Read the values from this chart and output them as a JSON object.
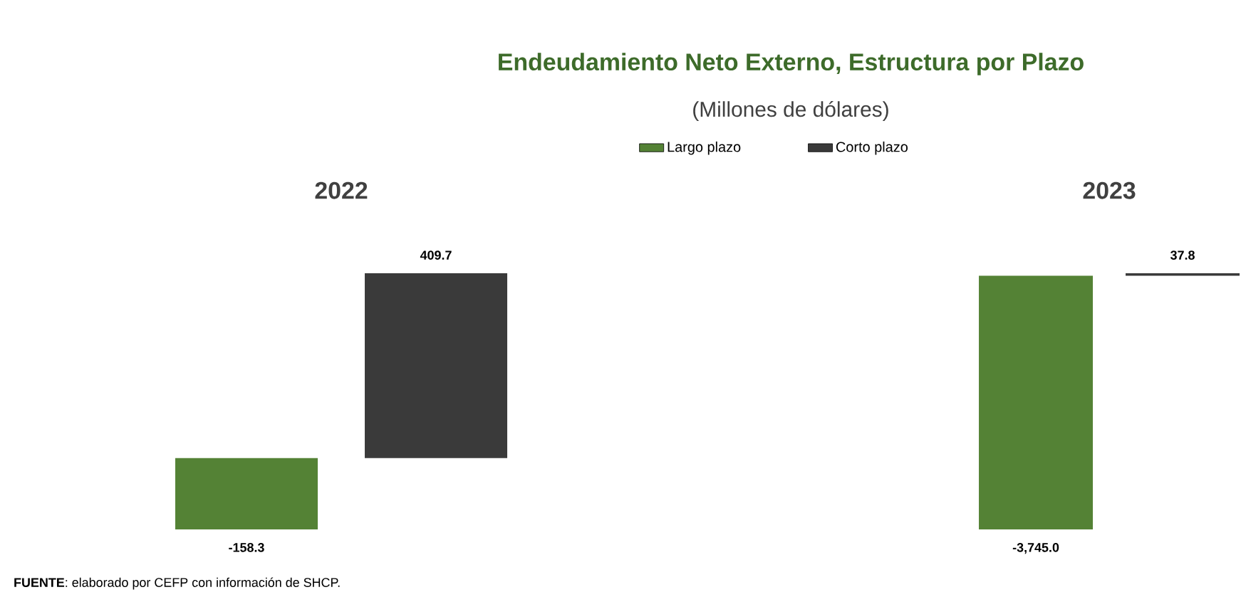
{
  "chart_data": [
    {
      "type": "other",
      "title": "Endeudamiento Neto Externo, Estructura por Plazo",
      "subtitle": "(Millones de dólares)",
      "annotations": [
        "**FUENTE**: elaborado por CEFP con información de SHCP."
      ]
    },
    {
      "type": "bar",
      "title": "2022",
      "categories": [
        null
      ],
      "legend": "top",
      "tick_labels": false,
      "series": [
        {
          "name": "Largo plazo",
          "color": "#548235",
          "values": [
            -158.3
          ],
          "value_labels": [
            "-158.3"
          ]
        },
        {
          "name": "Corto plazo",
          "color": "#3a3a3a",
          "values": [
            409.7
          ],
          "value_labels": [
            "409.7"
          ]
        }
      ]
    },
    {
      "type": "bar",
      "title": "2023",
      "categories": [
        null
      ],
      "tick_labels": false,
      "series": [
        {
          "color": "#548235",
          "values": [
            -3745.0
          ],
          "value_labels": [
            "-3,745.0"
          ]
        },
        {
          "color": "#3a3a3a",
          "values": [
            37.8
          ],
          "value_labels": [
            "37.8"
          ]
        }
      ]
    }
  ]
}
